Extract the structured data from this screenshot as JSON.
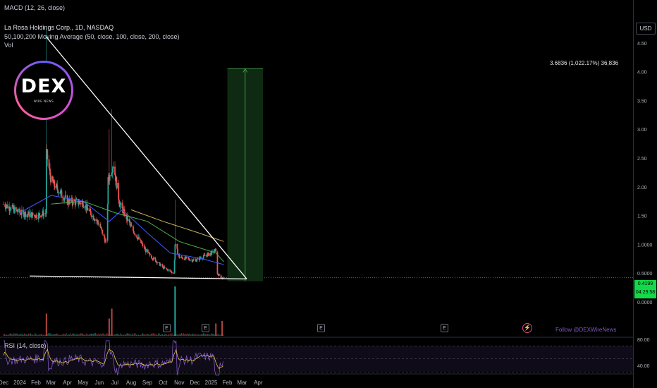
{
  "header": {
    "macd_label": "MACD (12, 26, close)",
    "symbol_line": "La Rosa Holdings Corp., 1D, NASDAQ",
    "ma_line": "50,100,200 Moving Average (50, close, 100, close, 200, close)",
    "vol_line": "Vol",
    "rsi_line": "RSI (14, close)"
  },
  "axis": {
    "currency": "USD",
    "price_ticks": [
      "4.50",
      "4.00",
      "3.50",
      "3.00",
      "2.50",
      "2.00",
      "1.50",
      "1.0000",
      "0.5000",
      "0.0000"
    ],
    "rsi_ticks": [
      "80.00",
      "40.00"
    ]
  },
  "price_tag": {
    "value": "0.4199",
    "countdown": "04:29:58"
  },
  "logo": {
    "text": "DEX",
    "subtext": "WIRE NEWS"
  },
  "measure_label": "3.6836 (1,022.17%) 36,836",
  "events": [
    "E",
    "E",
    "E",
    "E"
  ],
  "follow_text": "Follow @DEXWireNews",
  "colors": {
    "up": "#26a69a",
    "down": "#ef5350",
    "ma50": "#3d5afe",
    "ma100": "#4caf50",
    "ma200": "#c9b458",
    "rsi": "#7e57c2",
    "rsi_ma": "#e8c547",
    "measure_fill": "#0f2a12",
    "measure_line": "#4caf50",
    "price_tag": "#14d94a"
  },
  "chart_data": {
    "type": "candlestick",
    "x_tick_labels": [
      "Dec",
      "2024",
      "Feb",
      "Mar",
      "Apr",
      "May",
      "Jun",
      "Jul",
      "Aug",
      "Sep",
      "Oct",
      "Nov",
      "Dec",
      "2025",
      "Feb",
      "Mar",
      "Apr"
    ],
    "y_range": [
      0,
      4.8
    ],
    "price_anchors": [
      {
        "date": "2023-12-01",
        "price": 1.7
      },
      {
        "date": "2024-01-01",
        "price": 1.55
      },
      {
        "date": "2024-02-01",
        "price": 1.5
      },
      {
        "date": "2024-02-20",
        "price": 1.55
      },
      {
        "date": "2024-02-21",
        "price": 2.6
      },
      {
        "date": "2024-03-01",
        "price": 2.1
      },
      {
        "date": "2024-04-01",
        "price": 1.75
      },
      {
        "date": "2024-05-01",
        "price": 1.72
      },
      {
        "date": "2024-06-01",
        "price": 1.35
      },
      {
        "date": "2024-06-15",
        "price": 1.0
      },
      {
        "date": "2024-06-18",
        "price": 2.1
      },
      {
        "date": "2024-06-28",
        "price": 2.4
      },
      {
        "date": "2024-07-10",
        "price": 1.7
      },
      {
        "date": "2024-08-01",
        "price": 1.3
      },
      {
        "date": "2024-09-01",
        "price": 0.85
      },
      {
        "date": "2024-10-01",
        "price": 0.6
      },
      {
        "date": "2024-10-22",
        "price": 0.5
      },
      {
        "date": "2024-10-24",
        "price": 1.0
      },
      {
        "date": "2024-11-01",
        "price": 0.78
      },
      {
        "date": "2024-12-01",
        "price": 0.72
      },
      {
        "date": "2025-01-01",
        "price": 0.85
      },
      {
        "date": "2025-01-10",
        "price": 0.9
      },
      {
        "date": "2025-01-13",
        "price": 0.48
      },
      {
        "date": "2025-01-22",
        "price": 0.42
      }
    ],
    "spikes": [
      {
        "date": "2024-02-21",
        "high": 4.75
      },
      {
        "date": "2024-06-20",
        "high": 3.0
      },
      {
        "date": "2024-06-25",
        "high": 3.35
      },
      {
        "date": "2024-10-24",
        "high": 1.78
      }
    ],
    "moving_averages": [
      {
        "name": "MA50",
        "points": [
          [
            "2024-01-01",
            1.55
          ],
          [
            "2024-03-01",
            1.85
          ],
          [
            "2024-05-01",
            1.75
          ],
          [
            "2024-06-20",
            1.4
          ],
          [
            "2024-07-15",
            1.6
          ],
          [
            "2024-09-01",
            1.2
          ],
          [
            "2024-10-15",
            0.85
          ],
          [
            "2024-12-15",
            0.75
          ],
          [
            "2025-01-25",
            0.65
          ]
        ]
      },
      {
        "name": "MA100",
        "points": [
          [
            "2024-03-01",
            1.7
          ],
          [
            "2024-05-01",
            1.75
          ],
          [
            "2024-07-01",
            1.55
          ],
          [
            "2024-09-01",
            1.4
          ],
          [
            "2024-11-01",
            1.05
          ],
          [
            "2025-01-10",
            0.85
          ],
          [
            "2025-01-25",
            0.7
          ]
        ]
      },
      {
        "name": "MA200",
        "points": [
          [
            "2024-08-01",
            1.6
          ],
          [
            "2024-10-01",
            1.4
          ],
          [
            "2024-12-01",
            1.22
          ],
          [
            "2025-01-25",
            1.05
          ]
        ]
      }
    ],
    "trendlines": [
      {
        "from": [
          "2024-02-21",
          4.6
        ],
        "to": [
          "2025-03-10",
          0.4
        ]
      },
      {
        "from": [
          "2024-01-20",
          0.45
        ],
        "to": [
          "2025-03-10",
          0.4
        ]
      }
    ],
    "measure": {
      "from": [
        "2025-02-01",
        0.36
      ],
      "to": [
        "2025-04-10",
        4.05
      ],
      "label": "3.6836 (1,022.17%) 36,836"
    },
    "volume_spikes": [
      {
        "date": "2024-02-21",
        "v": 0.45
      },
      {
        "date": "2024-06-20",
        "v": 0.35
      },
      {
        "date": "2024-06-25",
        "v": 0.55
      },
      {
        "date": "2024-10-24",
        "v": 1.0
      },
      {
        "date": "2025-01-10",
        "v": 0.25
      },
      {
        "date": "2025-01-22",
        "v": 0.3
      }
    ],
    "rsi": {
      "levels": [
        70,
        50,
        30
      ],
      "range": [
        20,
        85
      ]
    }
  }
}
